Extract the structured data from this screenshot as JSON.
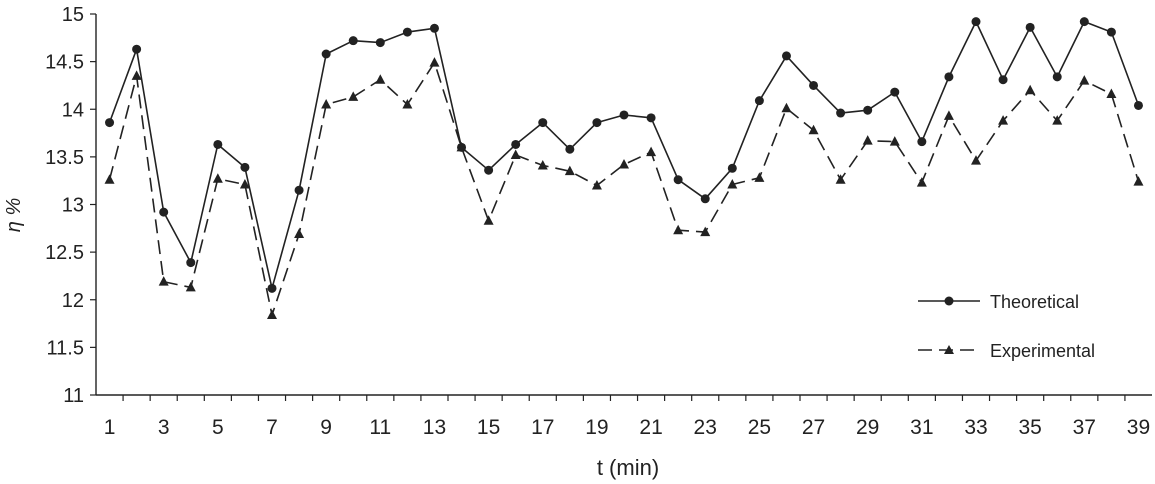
{
  "chart_data": {
    "type": "line",
    "title": "",
    "xlabel": "t (min)",
    "ylabel": "η %",
    "x": [
      1,
      2,
      3,
      4,
      5,
      6,
      7,
      8,
      9,
      10,
      11,
      12,
      13,
      14,
      15,
      16,
      17,
      18,
      19,
      20,
      21,
      22,
      23,
      24,
      25,
      26,
      27,
      28,
      29,
      30,
      31,
      32,
      33,
      34,
      35,
      36,
      37,
      38,
      39
    ],
    "xlim": [
      0.5,
      39.5
    ],
    "ylim": [
      11,
      15
    ],
    "xticks": [
      "1",
      "3",
      "5",
      "7",
      "9",
      "11",
      "13",
      "15",
      "17",
      "19",
      "21",
      "23",
      "25",
      "27",
      "29",
      "31",
      "33",
      "35",
      "37",
      "39"
    ],
    "yticks": [
      "11",
      "11.5",
      "12",
      "12.5",
      "13",
      "13.5",
      "14",
      "14.5",
      "15"
    ],
    "grid": false,
    "legend_position": "right",
    "series": [
      {
        "name": "Theoretical",
        "line_style": "solid",
        "marker": "circle",
        "color": "#222222",
        "values": [
          13.86,
          14.63,
          12.92,
          12.39,
          13.63,
          13.39,
          12.12,
          13.15,
          14.58,
          14.72,
          14.7,
          14.81,
          14.85,
          13.6,
          13.36,
          13.63,
          13.86,
          13.58,
          13.86,
          13.94,
          13.91,
          13.26,
          13.06,
          13.38,
          14.09,
          14.56,
          14.25,
          13.96,
          13.99,
          14.18,
          13.66,
          14.34,
          14.92,
          14.31,
          14.86,
          14.34,
          14.92,
          14.81,
          14.04
        ]
      },
      {
        "name": "Experimental",
        "line_style": "dashed",
        "marker": "triangle",
        "color": "#222222",
        "values": [
          13.26,
          14.35,
          12.19,
          12.13,
          13.27,
          13.21,
          11.84,
          12.69,
          14.05,
          14.13,
          14.31,
          14.05,
          14.49,
          13.6,
          12.83,
          13.52,
          13.41,
          13.35,
          13.2,
          13.42,
          13.55,
          12.73,
          12.71,
          13.21,
          13.28,
          14.01,
          13.78,
          13.26,
          13.67,
          13.66,
          13.23,
          13.93,
          13.46,
          13.88,
          14.2,
          13.88,
          14.3,
          14.16,
          13.24
        ]
      }
    ]
  }
}
